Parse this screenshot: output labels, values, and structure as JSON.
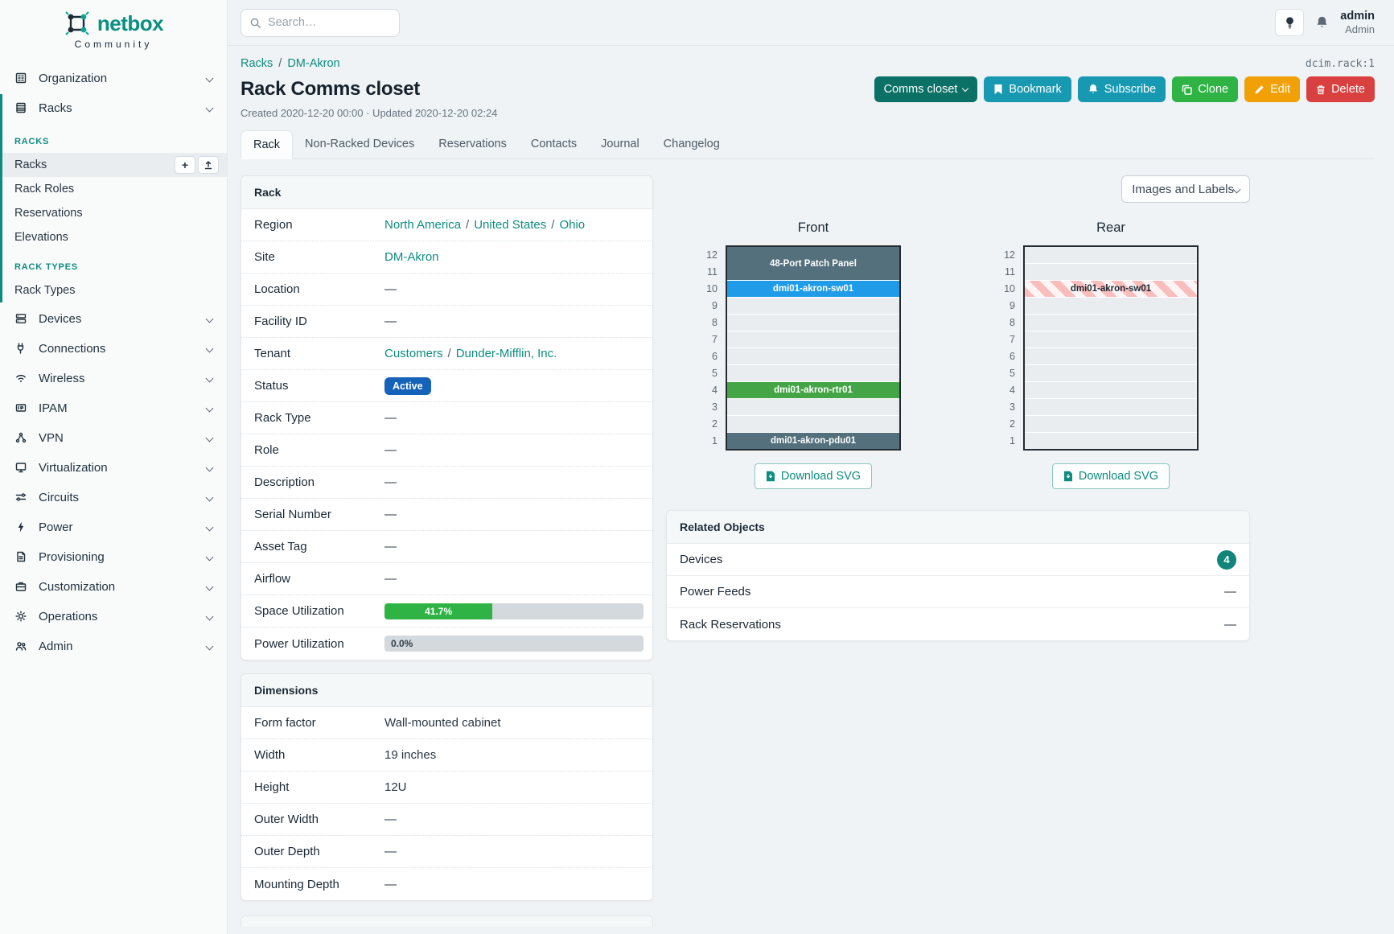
{
  "misc": {
    "slash": "/",
    "dash": "—"
  },
  "colors": {
    "accent_teal": "#0e8c80",
    "dark_teal_button": "#0b7065",
    "cyan_button": "#1899b2",
    "green_button": "#2fb344",
    "orange_button": "#f2a007",
    "red_button": "#d94141",
    "status_active_badge": "#1562b9",
    "progress_green": "#2eb344",
    "unit_slate": "#54707c",
    "unit_blue": "#1f9be8",
    "unit_green": "#44a546",
    "stripe_pink": "#f9bdbb",
    "badge_teal": "#12857a"
  },
  "sidebar": {
    "brand": "netbox",
    "tagline": "Community",
    "organization": {
      "label": "Organization"
    },
    "racks_group": {
      "label": "Racks"
    },
    "racks_section": {
      "title": "RACKS",
      "items": [
        {
          "label": "Racks",
          "active": true,
          "add_glyph": "+"
        },
        {
          "label": "Rack Roles"
        },
        {
          "label": "Reservations"
        },
        {
          "label": "Elevations"
        }
      ]
    },
    "rack_types_section": {
      "title": "RACK TYPES",
      "items": [
        {
          "label": "Rack Types"
        }
      ]
    },
    "groups": [
      {
        "label": "Devices"
      },
      {
        "label": "Connections"
      },
      {
        "label": "Wireless"
      },
      {
        "label": "IPAM"
      },
      {
        "label": "VPN"
      },
      {
        "label": "Virtualization"
      },
      {
        "label": "Circuits"
      },
      {
        "label": "Power"
      },
      {
        "label": "Provisioning"
      },
      {
        "label": "Customization"
      },
      {
        "label": "Operations"
      },
      {
        "label": "Admin"
      }
    ]
  },
  "topbar": {
    "search_placeholder": "Search…",
    "user_name": "admin",
    "user_role": "Admin"
  },
  "header": {
    "breadcrumb": {
      "racks": "Racks",
      "site": "DM-Akron"
    },
    "object_id": "dcim.rack:1",
    "title": "Rack Comms closet",
    "meta": "Created 2020-12-20 00:00 · Updated 2020-12-20 02:24",
    "actions": {
      "context": "Comms closet",
      "bookmark": "Bookmark",
      "subscribe": "Subscribe",
      "clone": "Clone",
      "edit": "Edit",
      "delete": "Delete"
    }
  },
  "tabs": [
    {
      "label": "Rack"
    },
    {
      "label": "Non-Racked Devices"
    },
    {
      "label": "Reservations"
    },
    {
      "label": "Contacts"
    },
    {
      "label": "Journal"
    },
    {
      "label": "Changelog"
    }
  ],
  "rack_panel": {
    "title": "Rack",
    "rows": [
      {
        "label": "Region",
        "links": [
          "North America",
          "United States",
          "Ohio"
        ]
      },
      {
        "label": "Site",
        "links": [
          "DM-Akron"
        ]
      },
      {
        "label": "Location",
        "value": "—"
      },
      {
        "label": "Facility ID",
        "value": "—"
      },
      {
        "label": "Tenant",
        "links": [
          "Customers",
          "Dunder-Mifflin, Inc."
        ]
      },
      {
        "label": "Status",
        "value": "Active"
      },
      {
        "label": "Rack Type",
        "value": "—"
      },
      {
        "label": "Role",
        "value": "—"
      },
      {
        "label": "Description",
        "value": "—"
      },
      {
        "label": "Serial Number",
        "value": "—"
      },
      {
        "label": "Asset Tag",
        "value": "—"
      },
      {
        "label": "Airflow",
        "value": "—"
      },
      {
        "label": "Space Utilization",
        "percent": 41.7,
        "text": "41.7%"
      },
      {
        "label": "Power Utilization",
        "percent": 0,
        "text": "0.0%"
      }
    ]
  },
  "dimensions_panel": {
    "title": "Dimensions",
    "rows": [
      {
        "label": "Form factor",
        "value": "Wall-mounted cabinet"
      },
      {
        "label": "Width",
        "value": "19 inches"
      },
      {
        "label": "Height",
        "value": "12U"
      },
      {
        "label": "Outer Width",
        "value": "—"
      },
      {
        "label": "Outer Depth",
        "value": "—"
      },
      {
        "label": "Mounting Depth",
        "value": "—"
      }
    ]
  },
  "elevations": {
    "view_selector": "Images and Labels",
    "download_label": "Download SVG",
    "unit_count": 12,
    "front": {
      "title": "Front",
      "units": [
        {
          "top_u": 12,
          "span": 2,
          "label": "48-Port Patch Panel",
          "style": "slate"
        },
        {
          "top_u": 10,
          "span": 1,
          "label": "dmi01-akron-sw01",
          "style": "blue"
        },
        {
          "top_u": 9,
          "span": 1,
          "label": "",
          "style": "empty"
        },
        {
          "top_u": 8,
          "span": 1,
          "label": "",
          "style": "empty"
        },
        {
          "top_u": 7,
          "span": 1,
          "label": "",
          "style": "empty"
        },
        {
          "top_u": 6,
          "span": 1,
          "label": "",
          "style": "empty"
        },
        {
          "top_u": 5,
          "span": 1,
          "label": "",
          "style": "empty"
        },
        {
          "top_u": 4,
          "span": 1,
          "label": "dmi01-akron-rtr01",
          "style": "green"
        },
        {
          "top_u": 3,
          "span": 1,
          "label": "",
          "style": "empty"
        },
        {
          "top_u": 2,
          "span": 1,
          "label": "",
          "style": "empty"
        },
        {
          "top_u": 1,
          "span": 1,
          "label": "dmi01-akron-pdu01",
          "style": "slate"
        }
      ]
    },
    "rear": {
      "title": "Rear",
      "units": [
        {
          "top_u": 12,
          "span": 1,
          "label": "",
          "style": "empty"
        },
        {
          "top_u": 11,
          "span": 1,
          "label": "",
          "style": "empty"
        },
        {
          "top_u": 10,
          "span": 1,
          "label": "dmi01-akron-sw01",
          "style": "striped"
        },
        {
          "top_u": 9,
          "span": 1,
          "label": "",
          "style": "empty"
        },
        {
          "top_u": 8,
          "span": 1,
          "label": "",
          "style": "empty"
        },
        {
          "top_u": 7,
          "span": 1,
          "label": "",
          "style": "empty"
        },
        {
          "top_u": 6,
          "span": 1,
          "label": "",
          "style": "empty"
        },
        {
          "top_u": 5,
          "span": 1,
          "label": "",
          "style": "empty"
        },
        {
          "top_u": 4,
          "span": 1,
          "label": "",
          "style": "empty"
        },
        {
          "top_u": 3,
          "span": 1,
          "label": "",
          "style": "empty"
        },
        {
          "top_u": 2,
          "span": 1,
          "label": "",
          "style": "empty"
        },
        {
          "top_u": 1,
          "span": 1,
          "label": "",
          "style": "empty"
        }
      ]
    }
  },
  "related_objects": {
    "title": "Related Objects",
    "rows": [
      {
        "label": "Devices",
        "count": "4"
      },
      {
        "label": "Power Feeds",
        "value": "—"
      },
      {
        "label": "Rack Reservations",
        "value": "—"
      }
    ]
  }
}
